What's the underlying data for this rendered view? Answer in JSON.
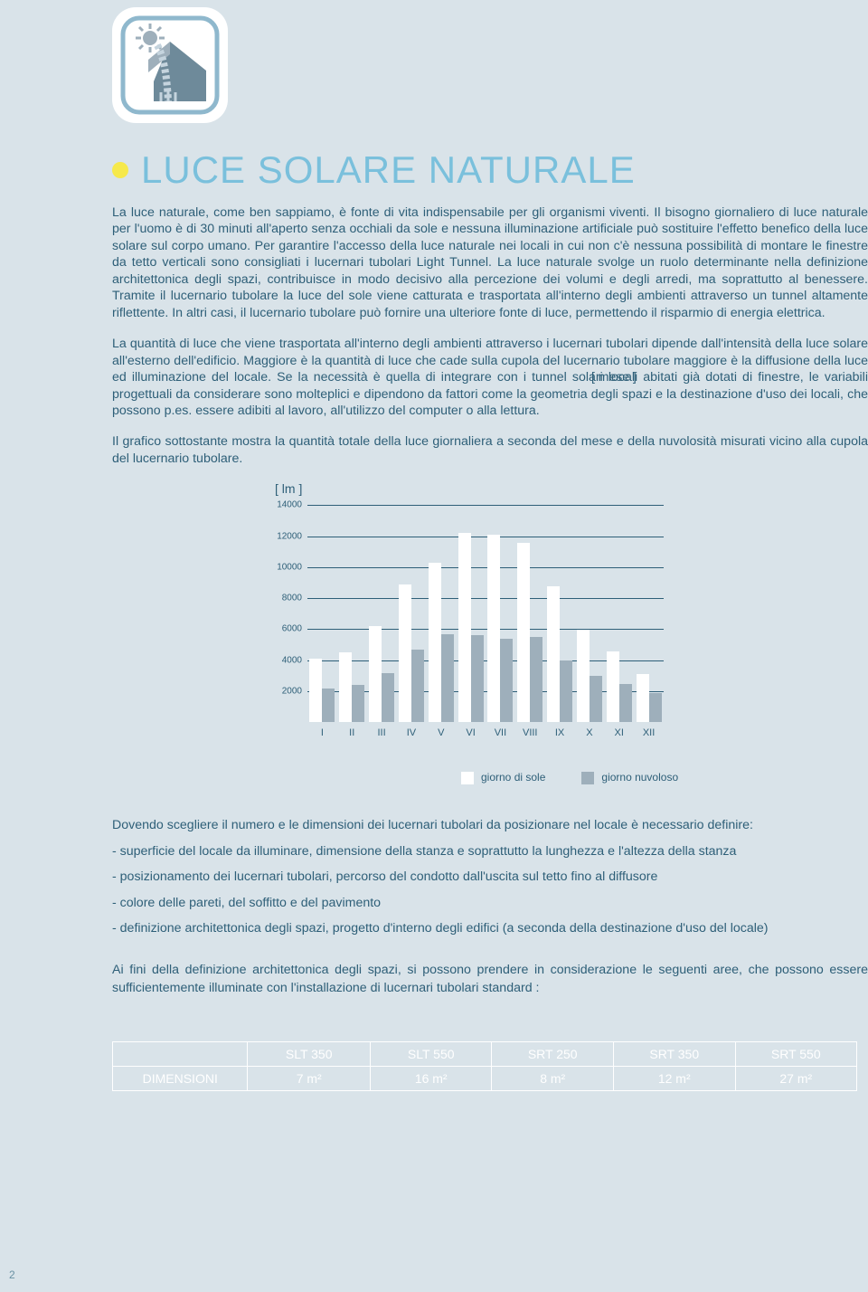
{
  "title": "LUCE SOLARE NATURALE",
  "para1": "La luce naturale, come ben sappiamo, è fonte di vita indispensabile per gli organismi viventi. Il bisogno giornaliero di luce naturale per l'uomo è di 30 minuti all'aperto senza occhiali da sole e nessuna illuminazione artificiale può sostituire l'effetto benefico della luce solare sul corpo umano. Per garantire l'accesso della luce naturale nei locali in cui non c'è nessuna possibilità di montare le finestre da tetto verticali sono consigliati i lucernari tubolari Light Tunnel. La luce naturale svolge un ruolo determinante nella definizione architettonica degli spazi, contribuisce in modo decisivo alla percezione dei volumi e degli arredi, ma soprattutto al benessere. Tramite il lucernario tubolare la luce del sole viene catturata e trasportata all'interno degli ambienti attraverso un tunnel altamente riflettente. In altri casi, il lucernario tubolare può fornire una ulteriore fonte di luce, permettendo il risparmio di energia elettrica.",
  "para2": "La quantità di luce che viene trasportata all'interno degli ambienti attraverso i lucernari tubolari dipende dall'intensità della luce solare all'esterno dell'edificio. Maggiore è la quantità di luce che cade sulla cupola del lucernario tubolare maggiore è la diffusione della luce ed illuminazione del locale. Se la necessità è quella di integrare con i tunnel solari locali abitati già dotati di finestre, le variabili progettuali da considerare sono molteplici e dipendono da fattori come la geometria degli spazi e la destinazione d'uso dei locali, che possono p.es. essere adibiti al lavoro, all'utilizzo del computer o alla lettura.",
  "para3": "Il  grafico sottostante  mostra la quantità totale della luce giornaliera a seconda del mese e della nuvolosità misurati vicino alla cupola del  lucernario tubolare.",
  "chart": {
    "ylabel": "[ lm ]",
    "xlabel": "[ mese ]",
    "ymax": 14000,
    "ytick_step": 2000,
    "yticks": [
      "14000",
      "12000",
      "10000",
      "8000",
      "6000",
      "4000",
      "2000"
    ],
    "months": [
      "I",
      "II",
      "III",
      "IV",
      "V",
      "VI",
      "VII",
      "VIII",
      "IX",
      "X",
      "XI",
      "XII"
    ],
    "sun": [
      4100,
      4500,
      6200,
      8900,
      10300,
      12200,
      12100,
      11600,
      8800,
      6000,
      4600,
      3100
    ],
    "cloud": [
      2200,
      2400,
      3200,
      4700,
      5700,
      5600,
      5400,
      5500,
      4000,
      3000,
      2500,
      1900
    ],
    "sun_color": "#ffffff",
    "cloud_color": "#9eafbb",
    "grid_color": "#2e5f78",
    "background": "#d9e3e9"
  },
  "legend": {
    "sun": "giorno di sole",
    "cloud": "giorno nuvoloso"
  },
  "list_intro": "Dovendo scegliere il numero e le dimensioni dei lucernari tubolari da posizionare nel locale è necessario definire:",
  "list_items": [
    "-  superficie del locale da illuminare, dimensione  della stanza e soprattutto la lunghezza e l'altezza della stanza",
    "-  posizionamento dei lucernari tubolari, percorso del condotto dall'uscita sul tetto fino al diffusore",
    "-  colore delle pareti, del soffitto e del pavimento",
    "-  definizione architettonica degli spazi, progetto d'interno degli edifici (a seconda della destinazione d'uso del locale)"
  ],
  "final": "Ai fini della definizione architettonica degli spazi, si possono prendere in considerazione le seguenti aree, che possono essere sufficientemente illuminate con l'installazione di lucernari tubolari standard :",
  "table": {
    "row_label": "DIMENSIONI",
    "columns": [
      "SLT 350",
      "SLT 550",
      "SRT 250",
      "SRT 350",
      "SRT 550"
    ],
    "values": [
      "7 m²",
      "16 m²",
      "8 m²",
      "12 m²",
      "27 m²"
    ]
  },
  "page": "2",
  "colors": {
    "bg": "#d9e3e9",
    "text": "#2e5f78",
    "title": "#7ac0dc",
    "bullet": "#f6e94b",
    "white": "#ffffff"
  }
}
